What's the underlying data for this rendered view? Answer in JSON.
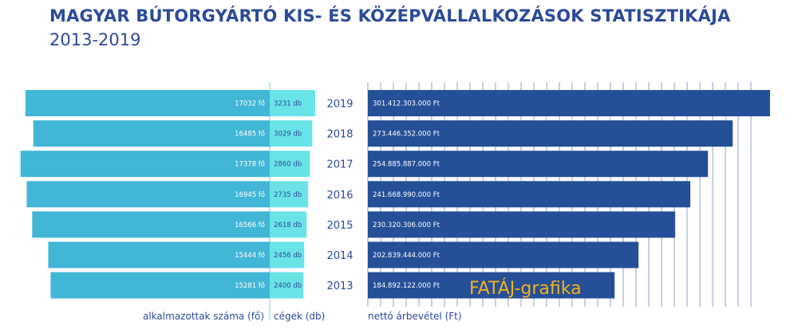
{
  "chart_data": {
    "type": "bar",
    "title": "MAGYAR BÚTORGYÁRTÓ KIS- ÉS KÖZÉPVÁLLALKOZÁSOK STATISZTIKÁJA",
    "subtitle": "2013-2019",
    "categories": [
      "2019",
      "2018",
      "2017",
      "2016",
      "2015",
      "2014",
      "2013"
    ],
    "series": [
      {
        "name": "alkalmazottak száma (fő)",
        "values": [
          17032,
          16485,
          17378,
          16945,
          16566,
          15444,
          15281
        ],
        "labels": [
          "17032 fő",
          "16485 fő",
          "17378 fő",
          "16945 fő",
          "16566 fő",
          "15444 fő",
          "15281 fő"
        ],
        "color": "#41b6d6"
      },
      {
        "name": "cégek (db)",
        "values": [
          3231,
          3029,
          2860,
          2735,
          2618,
          2456,
          2400
        ],
        "labels": [
          "3231 db",
          "3029 db",
          "2860 db",
          "2735 db",
          "2618 db",
          "2456 db",
          "2400 db"
        ],
        "color": "#69e3e7"
      },
      {
        "name": "nettó árbevétel (Ft)",
        "values": [
          301412303000,
          273446352000,
          254885887000,
          241668990000,
          230320306000,
          202839444000,
          184892122000
        ],
        "labels": [
          "301.412.303.000 Ft",
          "273.446.352.000 Ft",
          "254.885.887.000 Ft",
          "241.668.990.000 Ft",
          "230.320.306.000 Ft",
          "202.839.444.000 Ft",
          "184.892.122.000 Ft"
        ],
        "color": "#254f97"
      }
    ],
    "grid": true,
    "watermark": "FATÁJ-grafika",
    "text_color": "#2b4a9a",
    "watermark_color": "#f5b21b"
  }
}
